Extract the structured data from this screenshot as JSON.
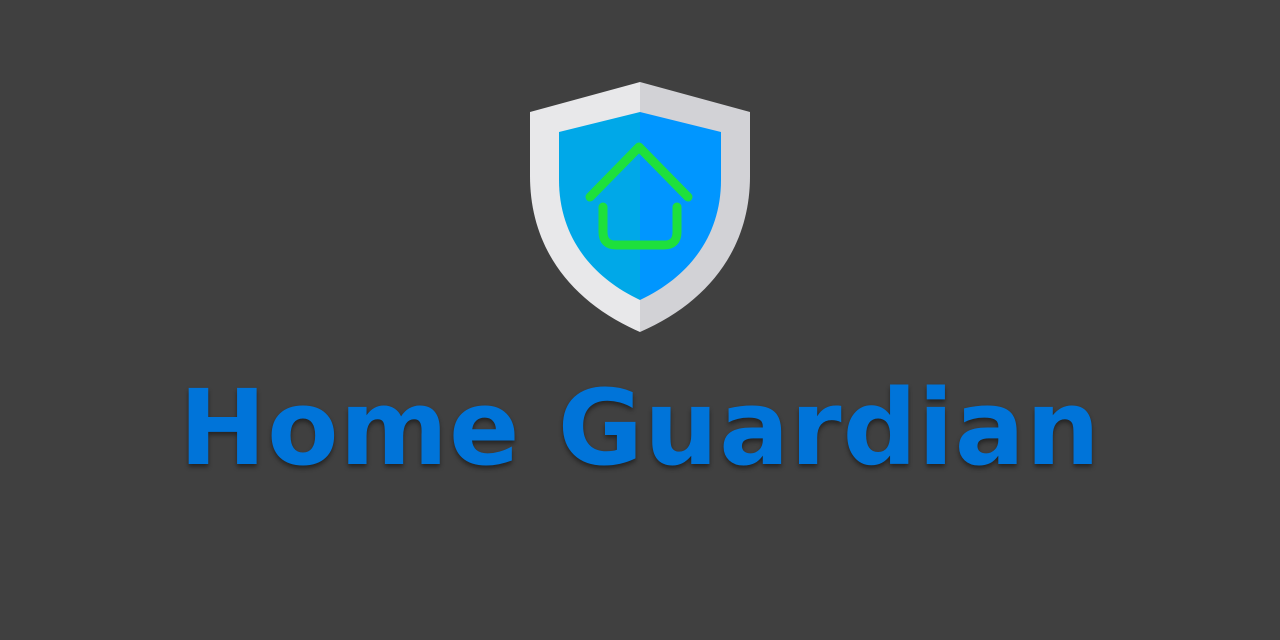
{
  "app": {
    "title": "Home Guardian",
    "title_color": "#0074d9",
    "background_color": "#404040"
  },
  "logo": {
    "icon": "shield-home-icon",
    "shield_outer_colors": [
      "#e8e8ea",
      "#d2d2d6"
    ],
    "shield_inner_colors": [
      "#00a8e8",
      "#0096ff"
    ],
    "house_color": "#1ee03c"
  }
}
